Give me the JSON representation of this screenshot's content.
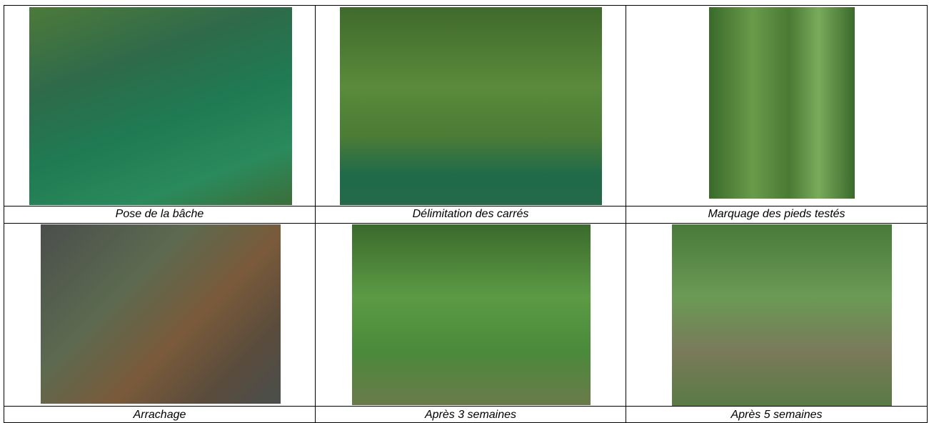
{
  "table": {
    "rows": [
      [
        {
          "caption": "Pose de la bâche"
        },
        {
          "caption": "Délimitation des carrés"
        },
        {
          "caption": "Marquage des pieds testés"
        }
      ],
      [
        {
          "caption": "Arrachage"
        },
        {
          "caption": "Après 3 semaines"
        },
        {
          "caption": "Après 5 semaines"
        }
      ]
    ]
  }
}
